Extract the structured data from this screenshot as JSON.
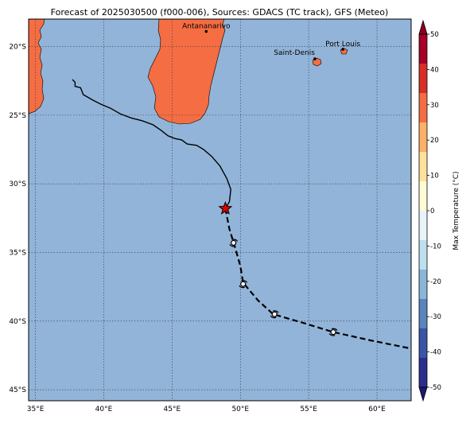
{
  "title": "Forecast of 2025030500 (f000-006), Sources: GDACS (TC track), GFS (Meteo)",
  "map": {
    "lon_range": [
      34.5,
      62.5
    ],
    "lat_range": [
      -45.8,
      -18.0
    ],
    "lon_ticks": [
      {
        "value": 35,
        "label": "35°E"
      },
      {
        "value": 40,
        "label": "40°E"
      },
      {
        "value": 45,
        "label": "45°E"
      },
      {
        "value": 50,
        "label": "50°E"
      },
      {
        "value": 55,
        "label": "55°E"
      },
      {
        "value": 60,
        "label": "60°E"
      }
    ],
    "lat_ticks": [
      {
        "value": -20,
        "label": "20°S"
      },
      {
        "value": -25,
        "label": "25°S"
      },
      {
        "value": -30,
        "label": "30°S"
      },
      {
        "value": -35,
        "label": "35°S"
      },
      {
        "value": -40,
        "label": "40°S"
      },
      {
        "value": -45,
        "label": "45°S"
      }
    ],
    "ocean_color": "#92b4d8",
    "land_color": "#f46d43"
  },
  "cities": [
    {
      "name": "Antananarivo",
      "lon": 47.5,
      "lat": -18.9
    },
    {
      "name": "Saint-Denis",
      "lon": 55.45,
      "lat": -20.9
    },
    {
      "name": "Port Louis",
      "lon": 57.5,
      "lat": -20.2
    }
  ],
  "track": {
    "observed": [
      [
        37.7,
        -22.4
      ],
      [
        37.9,
        -22.6
      ],
      [
        37.9,
        -22.9
      ],
      [
        38.3,
        -23.0
      ],
      [
        38.5,
        -23.5
      ],
      [
        39.2,
        -23.9
      ],
      [
        39.8,
        -24.2
      ],
      [
        40.5,
        -24.5
      ],
      [
        41.2,
        -24.9
      ],
      [
        42.0,
        -25.2
      ],
      [
        42.8,
        -25.4
      ],
      [
        43.6,
        -25.7
      ],
      [
        44.2,
        -26.1
      ],
      [
        44.7,
        -26.5
      ],
      [
        45.2,
        -26.7
      ],
      [
        45.7,
        -26.8
      ],
      [
        46.1,
        -27.1
      ],
      [
        46.8,
        -27.2
      ],
      [
        47.3,
        -27.5
      ],
      [
        47.9,
        -28.0
      ],
      [
        48.5,
        -28.7
      ],
      [
        49.0,
        -29.6
      ],
      [
        49.3,
        -30.4
      ],
      [
        49.2,
        -31.3
      ],
      [
        48.9,
        -31.8
      ]
    ],
    "forecast": [
      [
        48.9,
        -31.8
      ],
      [
        49.2,
        -33.3
      ],
      [
        49.6,
        -34.6
      ],
      [
        50.0,
        -36.0
      ],
      [
        50.2,
        -37.2
      ],
      [
        51.3,
        -38.5
      ],
      [
        52.4,
        -39.5
      ],
      [
        54.5,
        -40.1
      ],
      [
        56.8,
        -40.8
      ],
      [
        59.5,
        -41.4
      ],
      [
        62.5,
        -42.0
      ]
    ],
    "current_position": {
      "lon": 48.9,
      "lat": -31.8
    },
    "forecast_symbols": [
      {
        "lon": 49.5,
        "lat": -34.3
      },
      {
        "lon": 50.2,
        "lat": -37.3
      },
      {
        "lon": 52.5,
        "lat": -39.5
      },
      {
        "lon": 56.8,
        "lat": -40.8
      }
    ]
  },
  "colorbar": {
    "label": "Max Temperature (°C)",
    "ticks": [
      -50,
      -40,
      -30,
      -20,
      -10,
      0,
      10,
      20,
      30,
      40,
      50
    ],
    "colors": [
      "#2c2d8f",
      "#3a55a6",
      "#5a84bd",
      "#8ab6d7",
      "#bee0ee",
      "#e7f5fa",
      "#fefbd6",
      "#fee19a",
      "#fdb067",
      "#f46d43",
      "#d73027",
      "#a50026"
    ],
    "under_color": "#1b1b6b",
    "over_color": "#8b0020"
  }
}
